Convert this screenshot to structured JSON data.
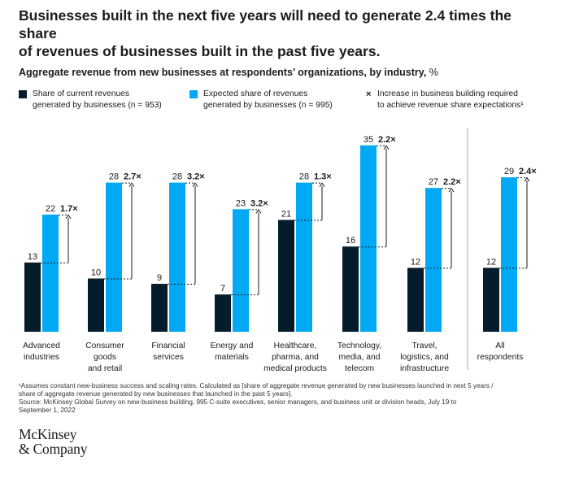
{
  "headline_lines": [
    "Businesses built in the next five years will need to generate 2.4 times the share",
    "of revenues of businesses built in the past five years."
  ],
  "subtitle": "Aggregate revenue from new businesses at respondents’ organizations, by industry,",
  "subtitle_unit": " %",
  "legend": {
    "current": {
      "line1": "Share of current revenues",
      "line2": "generated by businesses (n = 953)",
      "color": "#051c2c"
    },
    "expected": {
      "line1": "Expected share of revenues",
      "line2": "generated by businesses (n = 995)",
      "color": "#00a9f4"
    },
    "increase": {
      "symbol": "×",
      "line1": "Increase in business building required",
      "line2": "to achieve revenue share expectations¹"
    }
  },
  "chart_data": {
    "type": "bar",
    "title": "Aggregate revenue from new businesses at respondents’ organizations, by industry, %",
    "ylabel": "%",
    "ylim": [
      0,
      35
    ],
    "categories": [
      [
        "Advanced",
        "industries"
      ],
      [
        "Consumer",
        "goods",
        "and retail"
      ],
      [
        "Financial",
        "services"
      ],
      [
        "Energy and",
        "materials"
      ],
      [
        "Healthcare,",
        "pharma, and",
        "medical products"
      ],
      [
        "Technology,",
        "media, and",
        "telecom"
      ],
      [
        "Travel,",
        "logistics, and",
        "infrastructure"
      ],
      [
        "All",
        "respondents"
      ]
    ],
    "series": [
      {
        "name": "Share of current revenues generated by businesses (n = 953)",
        "color": "#051c2c",
        "values": [
          13,
          10,
          9,
          7,
          21,
          16,
          12,
          12
        ]
      },
      {
        "name": "Expected share of revenues generated by businesses (n = 995)",
        "color": "#00a9f4",
        "values": [
          22,
          28,
          28,
          23,
          28,
          35,
          27,
          29
        ]
      }
    ],
    "multipliers": [
      "1.7×",
      "2.7×",
      "3.2×",
      "3.2×",
      "1.3×",
      "2.2×",
      "2.2×",
      "2.4×"
    ],
    "separator_before_last": true
  },
  "footnotes": [
    "¹Assumes constant new-business success and scaling rates. Calculated as [share of aggregate revenue generated by new businesses launched in next 5 years /",
    "share of aggregate revenue generated by new businesses that launched in the past 5 years].",
    "Source: McKinsey Global Survey on new-business building, 995 C-suite executives, senior managers, and business unit or division heads, July 19 to",
    "September 1, 2022"
  ],
  "logo_lines": [
    "McKinsey",
    "& Company"
  ]
}
